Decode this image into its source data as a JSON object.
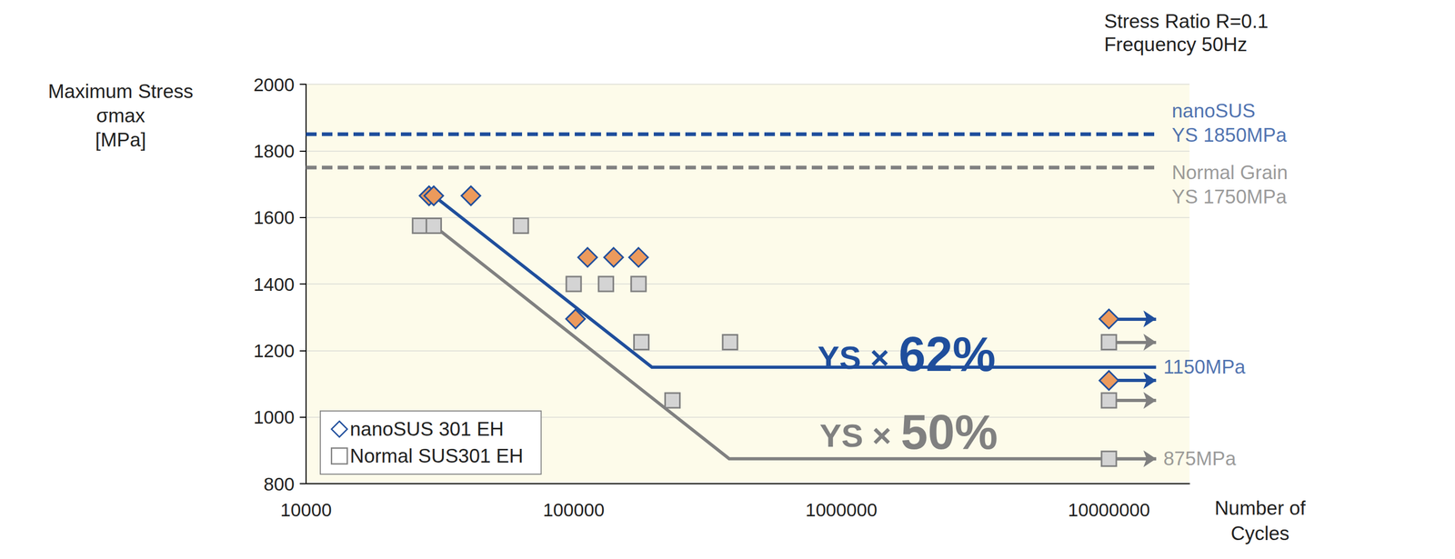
{
  "chart_data": {
    "type": "scatter",
    "subtitle": [
      "Stress Ratio R=0.1",
      "Frequency 50Hz"
    ],
    "x_label": [
      "Number of",
      "Cycles"
    ],
    "y_label": [
      "Maximum Stress",
      "σmax",
      "[MPa]"
    ],
    "log": "x",
    "grid": true,
    "legend": "lower left",
    "xlim": [
      10000,
      20000000
    ],
    "xticks": [
      10000,
      100000,
      1000000,
      10000000
    ],
    "ylim": [
      800,
      2000
    ],
    "yticks": [
      800,
      1000,
      1200,
      1400,
      1600,
      1800,
      2000
    ],
    "series": [
      {
        "type": "line",
        "line_style": "dashed",
        "color": "#1f4e9c",
        "x": [
          10000,
          15000000
        ],
        "values": [
          1850,
          1850
        ],
        "label": [
          "nanoSUS",
          "YS 1850MPa"
        ]
      },
      {
        "type": "line",
        "line_style": "dashed",
        "color": "#808080",
        "x": [
          10000,
          15000000
        ],
        "values": [
          1750,
          1750
        ],
        "label": [
          "Normal Grain",
          "YS 1750MPa"
        ]
      },
      {
        "type": "line",
        "line_style": "solid",
        "color": "#1f4e9c",
        "x": [
          30000,
          196000,
          15000000
        ],
        "values": [
          1665,
          1150,
          1150
        ],
        "label": "1150MPa"
      },
      {
        "type": "line",
        "line_style": "solid",
        "color": "#808080",
        "x": [
          30000,
          381000,
          15000000
        ],
        "values": [
          1575,
          875,
          875
        ],
        "label": "875MPa"
      },
      {
        "name": "nanoSUS 301 EH",
        "type": "scatter",
        "marker": "diamond",
        "color": "#1f4e9c",
        "x": [
          28800,
          30000,
          41300,
          101600,
          112700,
          141000,
          174700,
          10000000,
          10000000
        ],
        "values": [
          1665,
          1665,
          1665,
          1295,
          1480,
          1480,
          1480,
          1295,
          1110
        ],
        "runout": [
          false,
          false,
          false,
          false,
          false,
          false,
          false,
          true,
          true
        ]
      },
      {
        "name": "Normal SUS301 EH",
        "type": "scatter",
        "marker": "square",
        "color": "#808080",
        "x": [
          26650,
          30000,
          63500,
          100000,
          132000,
          174700,
          179000,
          384000,
          234000,
          10000000,
          10000000,
          10000000
        ],
        "values": [
          1575,
          1575,
          1575,
          1400,
          1400,
          1400,
          1225,
          1225,
          1050,
          1225,
          1050,
          875
        ],
        "runout": [
          false,
          false,
          false,
          false,
          false,
          false,
          false,
          false,
          false,
          true,
          true,
          true
        ]
      }
    ],
    "annotations": [
      {
        "text": "YS ×",
        "emphasis": "62%",
        "color": "#1f4e9c"
      },
      {
        "text": "YS ×",
        "emphasis": "50%",
        "color": "#808080"
      }
    ]
  }
}
